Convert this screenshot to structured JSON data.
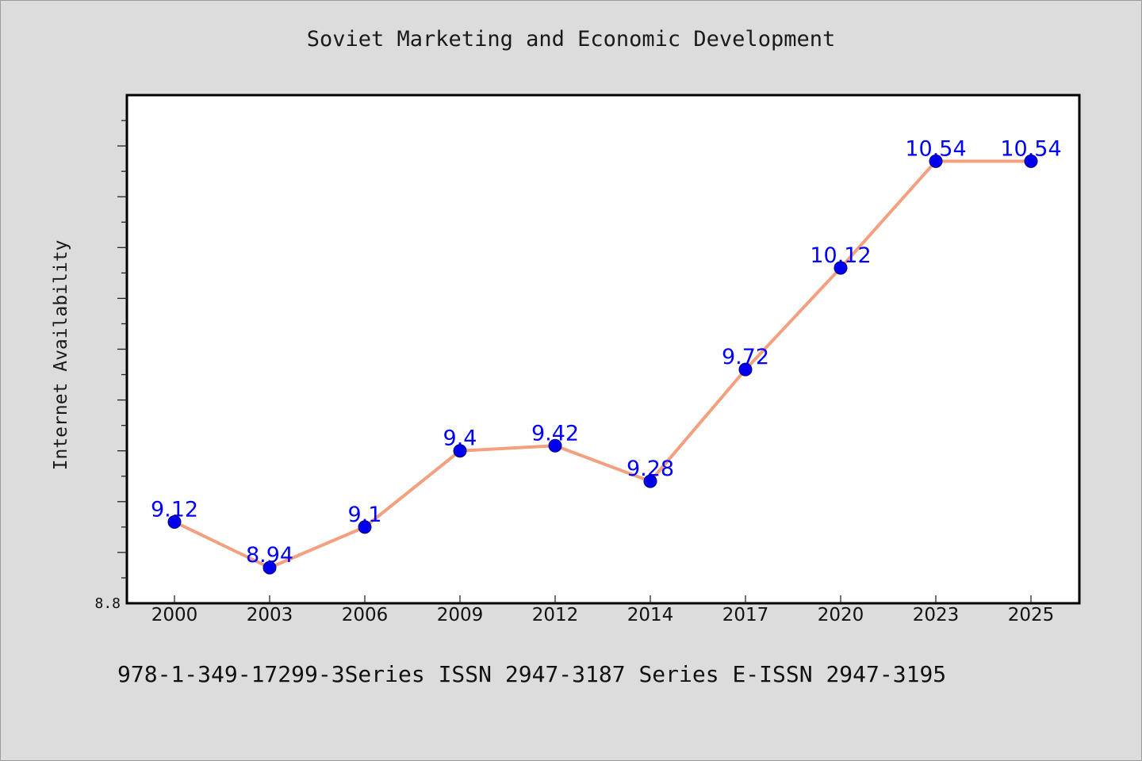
{
  "page": {
    "footer": "978-1-349-17299-3Series ISSN 2947-3187 Series E-ISSN 2947-3195"
  },
  "chart_data": {
    "type": "line",
    "title": "Soviet Marketing and Economic Development",
    "xlabel": "",
    "ylabel": "Internet Availability",
    "categories": [
      "2000",
      "2003",
      "2006",
      "2009",
      "2012",
      "2014",
      "2017",
      "2020",
      "2023",
      "2025"
    ],
    "series": [
      {
        "values": [
          9.12,
          8.94,
          9.1,
          9.4,
          9.42,
          9.28,
          9.72,
          10.12,
          10.54,
          10.54
        ],
        "labels": [
          "9.12",
          "8.94",
          "9.1",
          "9.4",
          "9.42",
          "9.28",
          "9.72",
          "10.12",
          "10.54",
          "10.54"
        ],
        "line_color": "#f4a07e",
        "marker_color": "#0000ee",
        "label_color": "#0000ff"
      }
    ],
    "ylim": [
      8.8,
      10.8
    ],
    "y_tick_labels": [
      {
        "value": 8.8,
        "label": "8.8"
      }
    ],
    "y_minor_step": 0.1,
    "y_major_step": 0.2,
    "grid": false,
    "legend": "none"
  }
}
